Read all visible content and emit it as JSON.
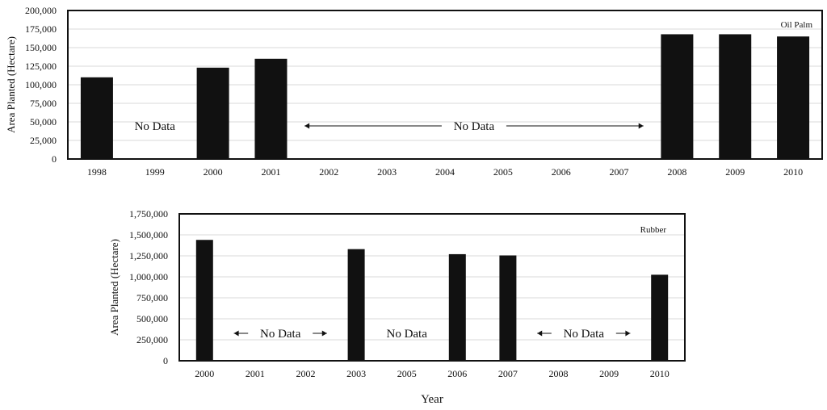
{
  "chart_data": [
    {
      "type": "bar",
      "series_label": "Oil Palm",
      "ylabel": "Area Planted (Hectare)",
      "xlabel": "",
      "ylim": [
        0,
        200000
      ],
      "yticks": [
        "0",
        "25,000",
        "50,000",
        "75,000",
        "100,000",
        "125,000",
        "150,000",
        "175,000",
        "200,000"
      ],
      "categories": [
        "1998",
        "1999",
        "2000",
        "2001",
        "2002",
        "2003",
        "2004",
        "2005",
        "2006",
        "2007",
        "2008",
        "2009",
        "2010"
      ],
      "values": [
        110000,
        null,
        123000,
        135000,
        null,
        null,
        null,
        null,
        null,
        null,
        168000,
        168000,
        165000
      ],
      "grid": true,
      "annotations": [
        {
          "text": "No Data",
          "from": "1999",
          "to": "1999",
          "arrows": false
        },
        {
          "text": "No Data",
          "from": "2002",
          "to": "2007",
          "arrows": true
        }
      ]
    },
    {
      "type": "bar",
      "series_label": "Rubber",
      "ylabel": "Area Planted (Hectare)",
      "xlabel": "Year",
      "ylim": [
        0,
        1750000
      ],
      "yticks": [
        "0",
        "250,000",
        "500,000",
        "750,000",
        "1,000,000",
        "1,250,000",
        "1,500,000",
        "1,750,000"
      ],
      "categories": [
        "2000",
        "2001",
        "2002",
        "2003",
        "2005",
        "2006",
        "2007",
        "2008",
        "2009",
        "2010"
      ],
      "values": [
        1440000,
        null,
        null,
        1330000,
        null,
        1270000,
        1255000,
        null,
        null,
        1025000
      ],
      "grid": true,
      "annotations": [
        {
          "text": "No Data",
          "from": "2001",
          "to": "2002",
          "arrows": true
        },
        {
          "text": "No Data",
          "from": "2005",
          "to": "2005",
          "arrows": false
        },
        {
          "text": "No Data",
          "from": "2008",
          "to": "2009",
          "arrows": true
        }
      ]
    }
  ]
}
